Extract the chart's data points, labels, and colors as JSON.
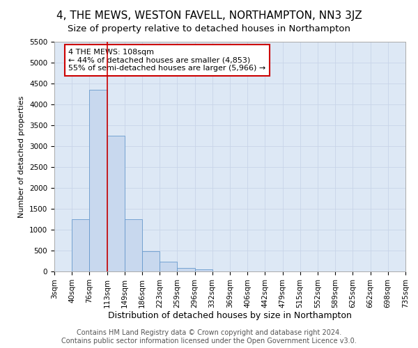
{
  "title": "4, THE MEWS, WESTON FAVELL, NORTHAMPTON, NN3 3JZ",
  "subtitle": "Size of property relative to detached houses in Northampton",
  "xlabel": "Distribution of detached houses by size in Northampton",
  "ylabel": "Number of detached properties",
  "bin_edges": [
    3,
    40,
    76,
    113,
    149,
    186,
    223,
    259,
    296,
    332,
    369,
    406,
    442,
    479,
    515,
    552,
    589,
    625,
    662,
    698,
    735
  ],
  "bar_heights": [
    0,
    1250,
    4350,
    3250,
    1250,
    480,
    230,
    80,
    50,
    0,
    0,
    0,
    0,
    0,
    0,
    0,
    0,
    0,
    0,
    0
  ],
  "bar_color": "#c8d8ee",
  "bar_edgecolor": "#6699cc",
  "bar_linewidth": 0.6,
  "vline_x": 113,
  "vline_color": "#cc0000",
  "vline_linewidth": 1.2,
  "annotation_text": "4 THE MEWS: 108sqm\n← 44% of detached houses are smaller (4,853)\n55% of semi-detached houses are larger (5,966) →",
  "annotation_box_color": "#cc0000",
  "ylim": [
    0,
    5500
  ],
  "yticks": [
    0,
    500,
    1000,
    1500,
    2000,
    2500,
    3000,
    3500,
    4000,
    4500,
    5000,
    5500
  ],
  "grid_color": "#c8d4e8",
  "background_color": "#dde8f5",
  "plot_background": "#dde8f5",
  "footer_text": "Contains HM Land Registry data © Crown copyright and database right 2024.\nContains public sector information licensed under the Open Government Licence v3.0.",
  "title_fontsize": 11,
  "subtitle_fontsize": 9.5,
  "xlabel_fontsize": 9,
  "ylabel_fontsize": 8,
  "tick_fontsize": 7.5,
  "annotation_fontsize": 8,
  "footer_fontsize": 7
}
